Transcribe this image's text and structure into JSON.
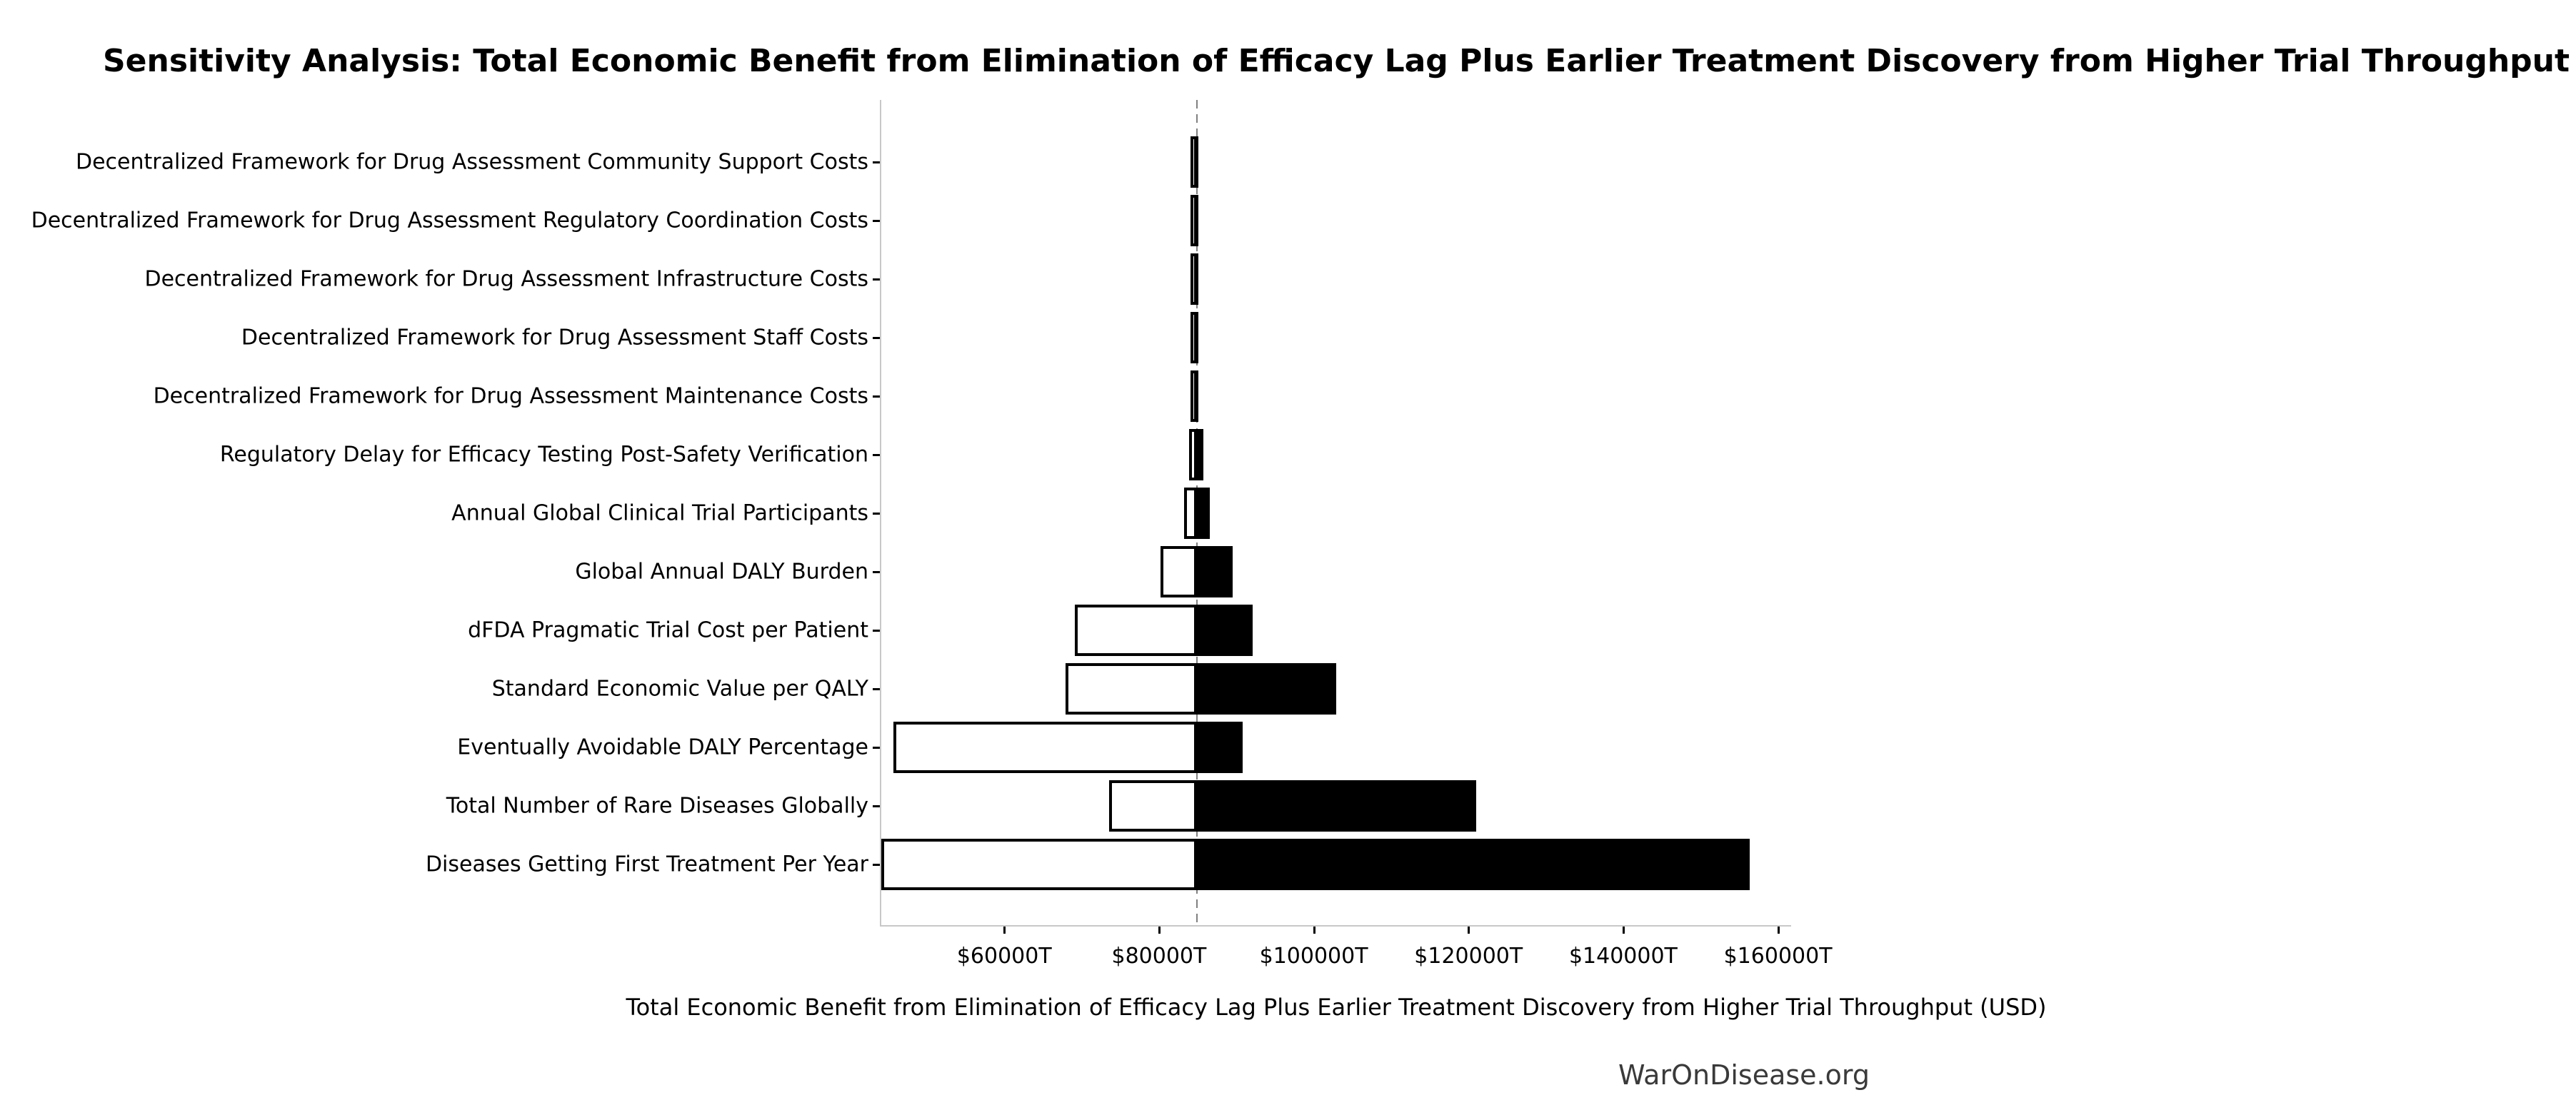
{
  "title": "Sensitivity Analysis: Total Economic Benefit from Elimination of Efficacy Lag Plus Earlier Treatment Discovery from Higher Trial Throughput",
  "x_axis_label": "Total Economic Benefit from Elimination of Efficacy Lag Plus Earlier Treatment Discovery from Higher Trial Throughput (USD)",
  "footer": "WarOnDisease.org",
  "chart_data": {
    "type": "bar",
    "subtype": "tornado-sensitivity",
    "orientation": "horizontal",
    "unit": "trillion USD ($T)",
    "baseline_value": 84900,
    "xlim": [
      44100,
      161700
    ],
    "grid": false,
    "legend": false,
    "colors": {
      "low_bar_fill": "#ffffff",
      "low_bar_edge": "#000000",
      "high_bar_fill": "#000000",
      "baseline_line": "#808080",
      "spine": "#c8c8c8",
      "text": "#000000",
      "footer_text": "#3a3a3a"
    },
    "x_ticks": [
      {
        "value": 60000,
        "label": "$60000T"
      },
      {
        "value": 80000,
        "label": "$80000T"
      },
      {
        "value": 100000,
        "label": "$100000T"
      },
      {
        "value": 120000,
        "label": "$120000T"
      },
      {
        "value": 140000,
        "label": "$140000T"
      },
      {
        "value": 160000,
        "label": "$160000T"
      }
    ],
    "rows": [
      {
        "label": "Decentralized Framework for Drug Assessment Community Support Costs",
        "low": 84800,
        "high": 85000
      },
      {
        "label": "Decentralized Framework for Drug Assessment Regulatory Coordination Costs",
        "low": 84800,
        "high": 85000
      },
      {
        "label": "Decentralized Framework for Drug Assessment Infrastructure Costs",
        "low": 84800,
        "high": 85000
      },
      {
        "label": "Decentralized Framework for Drug Assessment Staff Costs",
        "low": 84800,
        "high": 85000
      },
      {
        "label": "Decentralized Framework for Drug Assessment Maintenance Costs",
        "low": 84800,
        "high": 85000
      },
      {
        "label": "Regulatory Delay for Efficacy Testing Post-Safety Verification",
        "low": 83900,
        "high": 85700
      },
      {
        "label": "Annual Global Clinical Trial Participants",
        "low": 83200,
        "high": 86600
      },
      {
        "label": "Global Annual DALY Burden",
        "low": 80200,
        "high": 89500
      },
      {
        "label": "dFDA Pragmatic Trial Cost per Patient",
        "low": 69100,
        "high": 92100
      },
      {
        "label": "Standard Economic Value per QALY",
        "low": 67900,
        "high": 102900
      },
      {
        "label": "Eventually Avoidable DALY Percentage",
        "low": 45700,
        "high": 90800
      },
      {
        "label": "Total Number of Rare Diseases Globally",
        "low": 73500,
        "high": 121000
      },
      {
        "label": "Diseases Getting First Treatment Per Year",
        "low": 44100,
        "high": 156300
      }
    ]
  }
}
